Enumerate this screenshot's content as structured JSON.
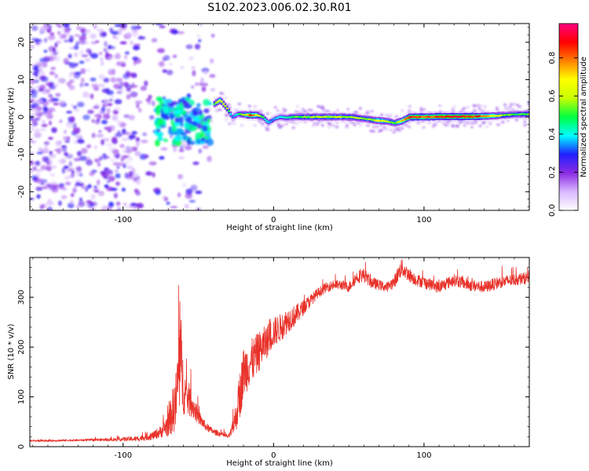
{
  "title": "S102.2023.006.02.30.R01",
  "chart_data": [
    {
      "type": "heatmap",
      "title": "S102.2023.006.02.30.R01",
      "xlabel": "Height of straight line (km)",
      "ylabel": "Frequency (Hz)",
      "xlim": [
        -162,
        170
      ],
      "ylim": [
        -25,
        25
      ],
      "x_ticks": [
        -100,
        0,
        100
      ],
      "y_ticks": [
        -20,
        -10,
        0,
        10,
        20
      ],
      "colorbar": {
        "label": "Normalized spectral amplitude",
        "range": [
          0.0,
          0.98
        ],
        "ticks": [
          0.0,
          0.2,
          0.4,
          0.6,
          0.8
        ],
        "colors": [
          "#ffffff",
          "#d9b8ff",
          "#8a2be2",
          "#2020ff",
          "#00ffff",
          "#00ff40",
          "#c8ff00",
          "#ffff00",
          "#ff8000",
          "#ff0000",
          "#ff0080"
        ]
      },
      "ridge": {
        "x": [
          -40,
          -36,
          -32,
          -28,
          -24,
          -20,
          -16,
          -12,
          -8,
          -4,
          0,
          4,
          8,
          12,
          20,
          30,
          40,
          50,
          60,
          65,
          70,
          75,
          80,
          85,
          90,
          100,
          110,
          120,
          130,
          140,
          150,
          160,
          170
        ],
        "y": [
          3.5,
          4.5,
          2.5,
          0.0,
          0.8,
          0.6,
          0.5,
          0.5,
          0.0,
          -1.5,
          -0.5,
          0.0,
          -0.2,
          0.0,
          0.0,
          0.0,
          0.0,
          0.0,
          -0.5,
          -0.8,
          -1.0,
          -1.2,
          -1.6,
          -1.0,
          0.0,
          0.0,
          0.1,
          0.1,
          0.1,
          0.2,
          0.4,
          0.7,
          0.8
        ],
        "amplitude": [
          0.55,
          0.7,
          0.6,
          0.35,
          0.45,
          0.6,
          0.85,
          0.7,
          0.5,
          0.4,
          0.35,
          0.4,
          0.45,
          0.5,
          0.55,
          0.6,
          0.6,
          0.6,
          0.55,
          0.6,
          0.7,
          0.6,
          0.55,
          0.75,
          0.9,
          0.85,
          0.9,
          0.92,
          0.9,
          0.8,
          0.6,
          0.5,
          0.55
        ]
      },
      "noise_region": {
        "x_range": [
          -162,
          -40
        ],
        "freq_range": [
          -25,
          25
        ],
        "amplitude_range": [
          0.05,
          0.3
        ]
      }
    },
    {
      "type": "line",
      "xlabel": "Height of straight line (km)",
      "ylabel": "SNR (10 * v/v)",
      "xlim": [
        -162,
        170
      ],
      "ylim": [
        0,
        380
      ],
      "x_ticks": [
        -100,
        0,
        100
      ],
      "y_ticks": [
        0,
        100,
        200,
        300
      ],
      "color": "#e8322a",
      "series": [
        {
          "name": "SNR",
          "x": [
            -162,
            -150,
            -130,
            -110,
            -90,
            -80,
            -75,
            -70,
            -65,
            -62,
            -60,
            -58,
            -55,
            -50,
            -45,
            -40,
            -35,
            -30,
            -28,
            -25,
            -22,
            -20,
            -15,
            -10,
            -5,
            0,
            5,
            10,
            15,
            20,
            25,
            30,
            35,
            40,
            45,
            50,
            55,
            60,
            65,
            70,
            75,
            80,
            85,
            90,
            95,
            100,
            110,
            120,
            130,
            140,
            150,
            160,
            170
          ],
          "y": [
            12,
            12,
            13,
            14,
            16,
            22,
            30,
            45,
            90,
            180,
            120,
            100,
            90,
            60,
            40,
            30,
            25,
            20,
            30,
            60,
            110,
            150,
            170,
            190,
            210,
            230,
            240,
            255,
            265,
            280,
            295,
            310,
            320,
            325,
            325,
            320,
            340,
            345,
            330,
            325,
            320,
            330,
            360,
            345,
            335,
            330,
            320,
            335,
            325,
            320,
            330,
            335,
            340
          ]
        }
      ],
      "noise_amplitude": [
        2,
        2,
        2,
        3,
        5,
        8,
        12,
        25,
        60,
        110,
        55,
        40,
        30,
        15,
        8,
        6,
        5,
        4,
        10,
        30,
        50,
        50,
        45,
        40,
        35,
        30,
        28,
        25,
        20,
        15,
        12,
        10,
        10,
        10,
        10,
        10,
        12,
        14,
        12,
        10,
        10,
        12,
        18,
        14,
        12,
        12,
        12,
        12,
        12,
        12,
        12,
        12,
        12
      ]
    }
  ]
}
